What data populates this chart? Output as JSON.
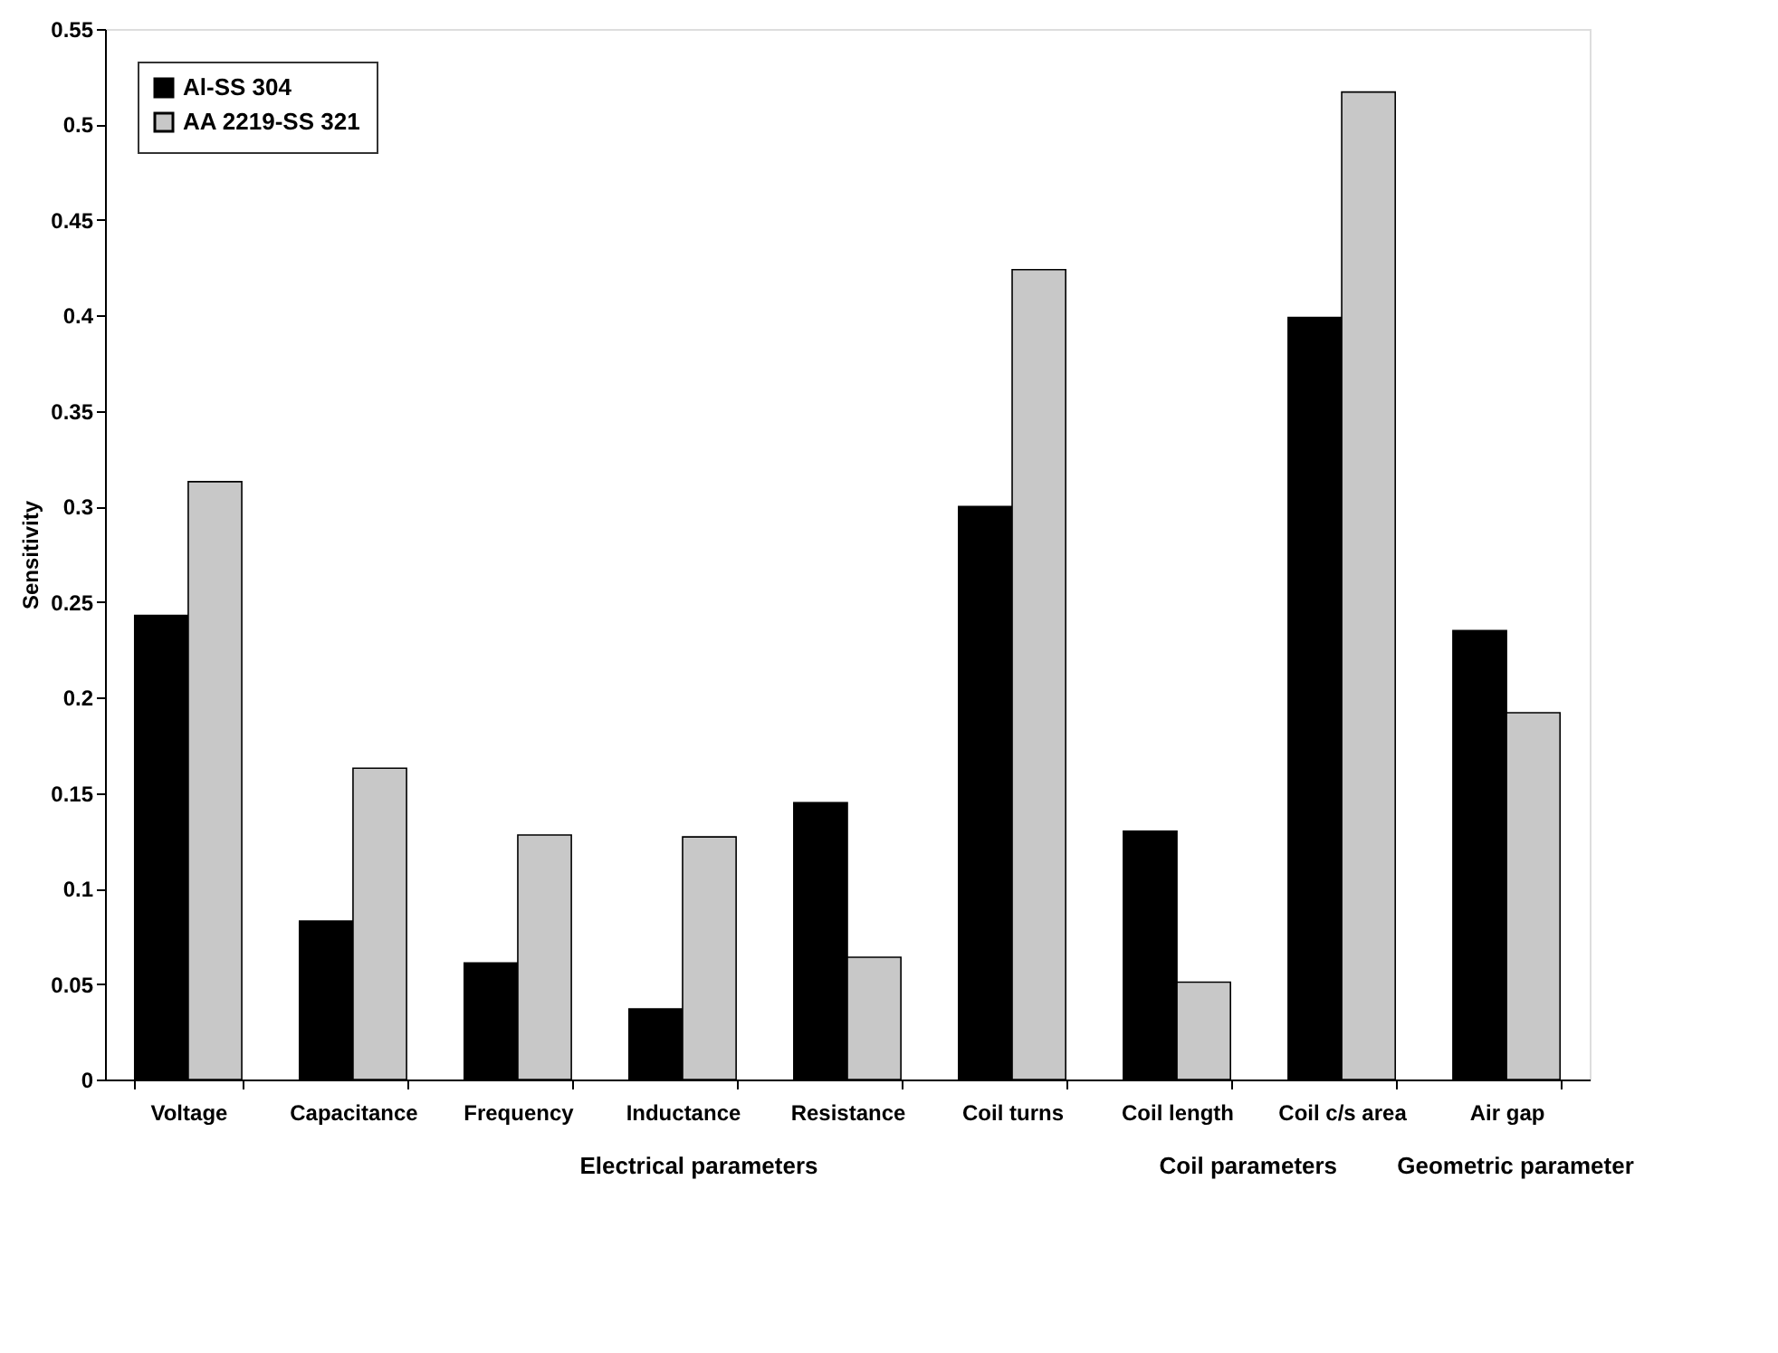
{
  "chart_data": {
    "type": "bar",
    "ylabel": "Sensitivity",
    "categories": [
      "Voltage",
      "Capacitance",
      "Frequency",
      "Inductance",
      "Resistance",
      "Coil turns",
      "Coil length",
      "Coil c/s area",
      "Air gap"
    ],
    "series": [
      {
        "name": "Al-SS 304",
        "color": "#000000",
        "values": [
          0.243,
          0.083,
          0.061,
          0.037,
          0.145,
          0.3,
          0.13,
          0.399,
          0.235
        ]
      },
      {
        "name": "AA 2219-SS 321",
        "color": "#c8c8c8",
        "values": [
          0.313,
          0.163,
          0.128,
          0.127,
          0.064,
          0.424,
          0.051,
          0.517,
          0.192
        ]
      }
    ],
    "ylim": [
      0,
      0.55
    ],
    "yticks": [
      0,
      0.05,
      0.1,
      0.15,
      0.2,
      0.25,
      0.3,
      0.35,
      0.4,
      0.45,
      0.5,
      0.55
    ],
    "grid": false,
    "legend": "top left",
    "annotations": [
      "Electrical parameters",
      "Coil parameters",
      "Geometric parameter"
    ]
  }
}
